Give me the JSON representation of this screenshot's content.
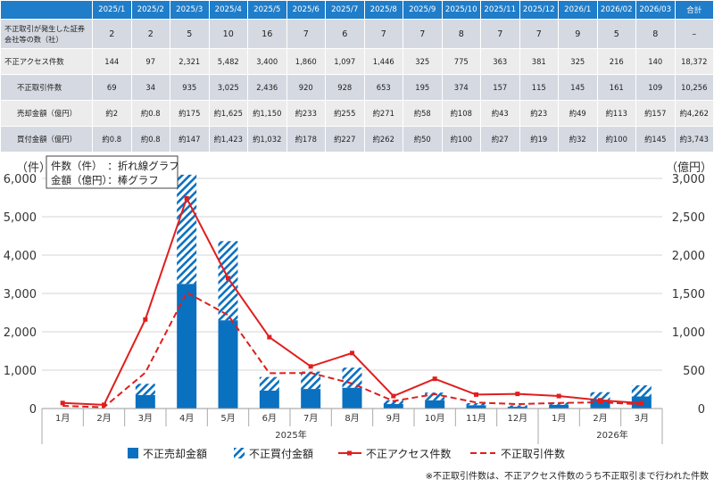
{
  "table": {
    "headers": [
      "2025/1",
      "2025/2",
      "2025/3",
      "2025/4",
      "2025/5",
      "2025/6",
      "2025/7",
      "2025/8",
      "2025/9",
      "2025/10",
      "2025/11",
      "2025/12",
      "2026/1",
      "2026/02",
      "2026/03",
      "合計"
    ],
    "rows": [
      {
        "label": "不正取引が発生した証券会社等の数（社）",
        "cells": [
          "2",
          "2",
          "5",
          "10",
          "16",
          "7",
          "6",
          "7",
          "7",
          "8",
          "7",
          "7",
          "9",
          "5",
          "8",
          "–"
        ]
      },
      {
        "label": "不正アクセス件数",
        "cells": [
          "144",
          "97",
          "2,321",
          "5,482",
          "3,400",
          "1,860",
          "1,097",
          "1,446",
          "325",
          "775",
          "363",
          "381",
          "325",
          "216",
          "140",
          "18,372"
        ]
      },
      {
        "label": "不正取引件数",
        "cells": [
          "69",
          "34",
          "935",
          "3,025",
          "2,436",
          "920",
          "928",
          "653",
          "195",
          "374",
          "157",
          "115",
          "145",
          "161",
          "109",
          "10,256"
        ]
      },
      {
        "label": "売却金額（億円）",
        "cells": [
          "約2",
          "約0.8",
          "約175",
          "約1,625",
          "約1,150",
          "約233",
          "約255",
          "約271",
          "約58",
          "約108",
          "約43",
          "約23",
          "約49",
          "約113",
          "約157",
          "約4,262"
        ]
      },
      {
        "label": "買付金額（億円）",
        "cells": [
          "約0.8",
          "約0.8",
          "約147",
          "約1,423",
          "約1,032",
          "約178",
          "約227",
          "約262",
          "約50",
          "約100",
          "約27",
          "約19",
          "約32",
          "約100",
          "約145",
          "約3,743"
        ]
      }
    ]
  },
  "chart_data": {
    "type": "bar",
    "categories": [
      "1月",
      "2月",
      "3月",
      "4月",
      "5月",
      "6月",
      "7月",
      "8月",
      "9月",
      "10月",
      "11月",
      "12月",
      "1月",
      "2月",
      "3月"
    ],
    "year_labels": [
      "2025年",
      "2026年"
    ],
    "left_axis": {
      "label": "（件）",
      "ticks": [
        "0",
        "1,000",
        "2,000",
        "3,000",
        "4,000",
        "5,000",
        "6,000"
      ],
      "ylim": [
        0,
        6000
      ]
    },
    "right_axis": {
      "label": "（億円）",
      "ticks": [
        "0",
        "500",
        "1,000",
        "1,500",
        "2,000",
        "2,500",
        "3,000"
      ],
      "ylim": [
        0,
        3000
      ]
    },
    "series": [
      {
        "name": "不正売却金額",
        "kind": "stacked-bar",
        "axis": "right",
        "color": "#0a70c0",
        "values": [
          2,
          0.8,
          175,
          1625,
          1150,
          233,
          255,
          271,
          58,
          108,
          43,
          23,
          49,
          113,
          157
        ]
      },
      {
        "name": "不正買付金額",
        "kind": "stacked-bar-hatched",
        "axis": "right",
        "color": "#0a70c0",
        "values": [
          0.8,
          0.8,
          147,
          1423,
          1032,
          178,
          227,
          262,
          50,
          100,
          27,
          19,
          32,
          100,
          145
        ]
      },
      {
        "name": "不正アクセス件数",
        "kind": "line-solid",
        "axis": "left",
        "color": "#e01e1e",
        "values": [
          144,
          97,
          2321,
          5482,
          3400,
          1860,
          1097,
          1446,
          325,
          775,
          363,
          381,
          325,
          216,
          140
        ]
      },
      {
        "name": "不正取引件数",
        "kind": "line-dashed",
        "axis": "left",
        "color": "#e01e1e",
        "values": [
          69,
          34,
          935,
          3025,
          2436,
          920,
          928,
          653,
          195,
          374,
          157,
          115,
          145,
          161,
          109
        ]
      }
    ],
    "note_box": [
      "件数（件）　：折れ線グラフ",
      "金額（億円）：棒グラフ"
    ],
    "footnote": "※不正取引件数は、不正アクセス件数のうち不正取引まで行われた件数"
  }
}
